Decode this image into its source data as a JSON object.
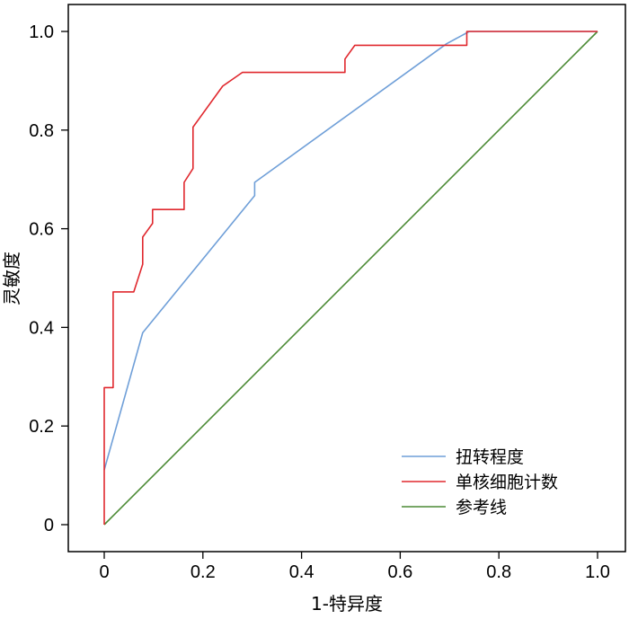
{
  "chart_data": {
    "type": "line",
    "xlabel": "1-特异度",
    "ylabel": "灵敏度",
    "xlim": [
      0,
      1
    ],
    "ylim": [
      0,
      1
    ],
    "x_ticks": [
      "0",
      "0.2",
      "0.4",
      "0.6",
      "0.8",
      "1.0"
    ],
    "y_ticks": [
      "0",
      "0.2",
      "0.4",
      "0.6",
      "0.8",
      "1.0"
    ],
    "grid": false,
    "legend_position": "bottom-right",
    "series": [
      {
        "name": "扭转程度",
        "color": "#6f9fd8",
        "points": [
          [
            0,
            0.111
          ],
          [
            0.078,
            0.389
          ],
          [
            0.305,
            0.667
          ],
          [
            0.305,
            0.694
          ],
          [
            0.694,
            0.975
          ],
          [
            0.74,
            1.0
          ],
          [
            1.0,
            1.0
          ]
        ]
      },
      {
        "name": "单核细胞计数",
        "color": "#e0282e",
        "points": [
          [
            0,
            0
          ],
          [
            0,
            0.278
          ],
          [
            0.018,
            0.278
          ],
          [
            0.018,
            0.472
          ],
          [
            0.06,
            0.472
          ],
          [
            0.078,
            0.528
          ],
          [
            0.078,
            0.583
          ],
          [
            0.098,
            0.611
          ],
          [
            0.098,
            0.639
          ],
          [
            0.162,
            0.639
          ],
          [
            0.162,
            0.694
          ],
          [
            0.18,
            0.722
          ],
          [
            0.18,
            0.806
          ],
          [
            0.24,
            0.889
          ],
          [
            0.28,
            0.917
          ],
          [
            0.488,
            0.917
          ],
          [
            0.488,
            0.944
          ],
          [
            0.508,
            0.972
          ],
          [
            0.735,
            0.972
          ],
          [
            0.735,
            1.0
          ],
          [
            1.0,
            1.0
          ]
        ]
      },
      {
        "name": "参考线",
        "color": "#4b8a35",
        "points": [
          [
            0,
            0
          ],
          [
            1,
            1
          ]
        ]
      }
    ]
  }
}
